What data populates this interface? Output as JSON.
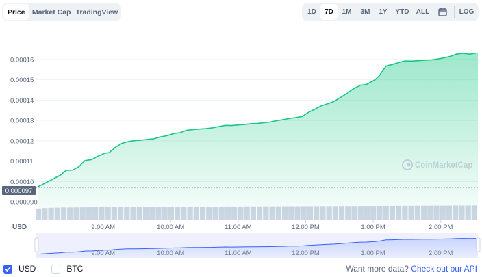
{
  "tabs": [
    {
      "label": "Price",
      "active": true
    },
    {
      "label": "Market Cap",
      "active": false
    },
    {
      "label": "TradingView",
      "active": false
    }
  ],
  "ranges": [
    {
      "label": "1D",
      "active": false
    },
    {
      "label": "7D",
      "active": true
    },
    {
      "label": "1M",
      "active": false
    },
    {
      "label": "3M",
      "active": false
    },
    {
      "label": "1Y",
      "active": false
    },
    {
      "label": "YTD",
      "active": false
    },
    {
      "label": "ALL",
      "active": false
    }
  ],
  "log_label": "LOG",
  "calendar_icon": "calendar-icon",
  "watermark": "CoinMarketCap",
  "currency_label": "USD",
  "current_price_label": "0.000097",
  "footer": {
    "usd_label": "USD",
    "usd_checked": true,
    "btc_label": "BTC",
    "btc_checked": false,
    "more_data_text": "Want more data?",
    "api_link_text": "Check out our API"
  },
  "colors": {
    "line": "#16c784",
    "accent": "#3861fb",
    "text_muted": "#58667e"
  },
  "chart_data": {
    "type": "area",
    "y_ticks": [
      "0.000090",
      "0.00010",
      "0.00011",
      "0.00012",
      "0.00013",
      "0.00014",
      "0.00015",
      "0.00016"
    ],
    "ylim": [
      8.77e-05,
      0.0001677
    ],
    "x_ticks": [
      "9:00 AM",
      "10:00 AM",
      "11:00 AM",
      "12:00 PM",
      "1:00 PM",
      "2:00 PM"
    ],
    "x_range_hours": [
      8.0,
      14.55
    ],
    "x_hours": [
      8.03,
      8.14,
      8.26,
      8.37,
      8.45,
      8.55,
      8.64,
      8.73,
      8.83,
      8.92,
      9.02,
      9.09,
      9.18,
      9.28,
      9.37,
      9.47,
      9.56,
      9.66,
      9.75,
      9.84,
      9.94,
      10.05,
      10.14,
      10.24,
      10.33,
      10.43,
      10.52,
      10.62,
      10.71,
      10.81,
      10.9,
      11.0,
      11.09,
      11.19,
      11.28,
      11.38,
      11.47,
      11.57,
      11.66,
      11.76,
      11.85,
      11.95,
      12.04,
      12.14,
      12.23,
      12.33,
      12.42,
      12.52,
      12.61,
      12.71,
      12.81,
      12.9,
      13.0,
      13.03,
      13.09,
      13.19,
      13.28,
      13.38,
      13.47,
      13.57,
      13.66,
      13.76,
      13.86,
      13.95,
      14.05,
      14.14,
      14.24,
      14.33,
      14.43,
      14.52
    ],
    "values": [
      9.74e-05,
      9.92e-05,
      0.0001013,
      0.0001032,
      0.0001055,
      0.0001056,
      0.0001073,
      0.0001103,
      0.0001108,
      0.0001124,
      0.0001139,
      0.0001142,
      0.0001168,
      0.0001188,
      0.0001196,
      0.0001201,
      0.0001203,
      0.0001207,
      0.000121,
      0.0001219,
      0.0001225,
      0.0001236,
      0.000124,
      0.0001252,
      0.0001255,
      0.0001258,
      0.000126,
      0.0001264,
      0.000127,
      0.0001276,
      0.0001275,
      0.0001278,
      0.000128,
      0.0001284,
      0.0001285,
      0.0001289,
      0.0001292,
      0.0001299,
      0.0001304,
      0.000131,
      0.0001314,
      0.000132,
      0.000134,
      0.0001356,
      0.0001372,
      0.0001383,
      0.0001394,
      0.0001414,
      0.0001433,
      0.0001456,
      0.0001473,
      0.0001477,
      0.0001495,
      0.0001501,
      0.000152,
      0.0001568,
      0.0001575,
      0.0001585,
      0.0001593,
      0.0001592,
      0.0001594,
      0.0001596,
      0.0001598,
      0.0001602,
      0.0001608,
      0.0001615,
      0.0001627,
      0.000163,
      0.0001626,
      0.0001631
    ],
    "volume": [
      0.6,
      0.65,
      0.68,
      0.7,
      0.72,
      0.72,
      0.73,
      0.74,
      0.75,
      0.75,
      0.76,
      0.76,
      0.77,
      0.78,
      0.78,
      0.78,
      0.79,
      0.79,
      0.8,
      0.8,
      0.8,
      0.81,
      0.81,
      0.81,
      0.82,
      0.82,
      0.82,
      0.83,
      0.83,
      0.83,
      0.84,
      0.84,
      0.84,
      0.85,
      0.85,
      0.85,
      0.86,
      0.86,
      0.86,
      0.87,
      0.87,
      0.87,
      0.88,
      0.88,
      0.88,
      0.89,
      0.89,
      0.89,
      0.9,
      0.9,
      0.9,
      0.91,
      0.91,
      0.91,
      0.92,
      0.92,
      0.92,
      0.93,
      0.93,
      0.93,
      0.94,
      0.94,
      0.94,
      0.95,
      0.95,
      0.95,
      0.96,
      0.96,
      0.96,
      0.97
    ],
    "grid": true
  }
}
